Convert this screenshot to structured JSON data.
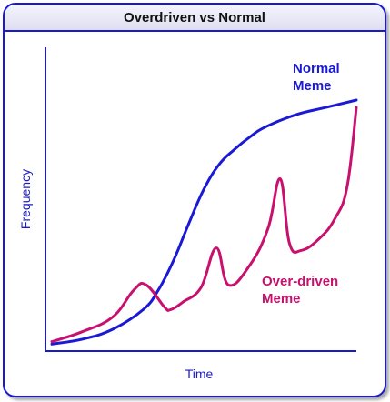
{
  "title": "Overdriven vs Normal",
  "colors": {
    "frame": "#1a1acc",
    "axis": "#1a1acc",
    "normal": "#1a1ad6",
    "overdriven": "#c8106e"
  },
  "chart_data": {
    "type": "line",
    "title": "Overdriven vs Normal",
    "xlabel": "Time",
    "ylabel": "Frequency",
    "xlim": [
      0,
      100
    ],
    "ylim": [
      0,
      100
    ],
    "grid": false,
    "axis_ticks": false,
    "series": [
      {
        "name": "Normal Meme",
        "label_lines": [
          "Normal",
          "Meme"
        ],
        "color": "#1a1ad6",
        "x": [
          0,
          10,
          20,
          30,
          35,
          40,
          45,
          50,
          55,
          60,
          65,
          70,
          80,
          90,
          100
        ],
        "y": [
          1,
          3,
          7,
          15,
          23,
          35,
          50,
          64,
          74,
          80,
          85,
          89,
          94,
          97,
          100
        ]
      },
      {
        "name": "Over-driven Meme",
        "label_lines": [
          "Over-driven",
          "Meme"
        ],
        "color": "#c8106e",
        "x": [
          0,
          10,
          20,
          27,
          31,
          37,
          39,
          43,
          49,
          54,
          58,
          65,
          71,
          75,
          78,
          82,
          88,
          93,
          97,
          100
        ],
        "y": [
          2,
          6,
          12,
          23,
          25,
          16,
          15,
          18,
          24,
          40,
          25,
          33,
          48,
          68,
          42,
          39,
          44,
          52,
          65,
          97
        ]
      }
    ]
  }
}
